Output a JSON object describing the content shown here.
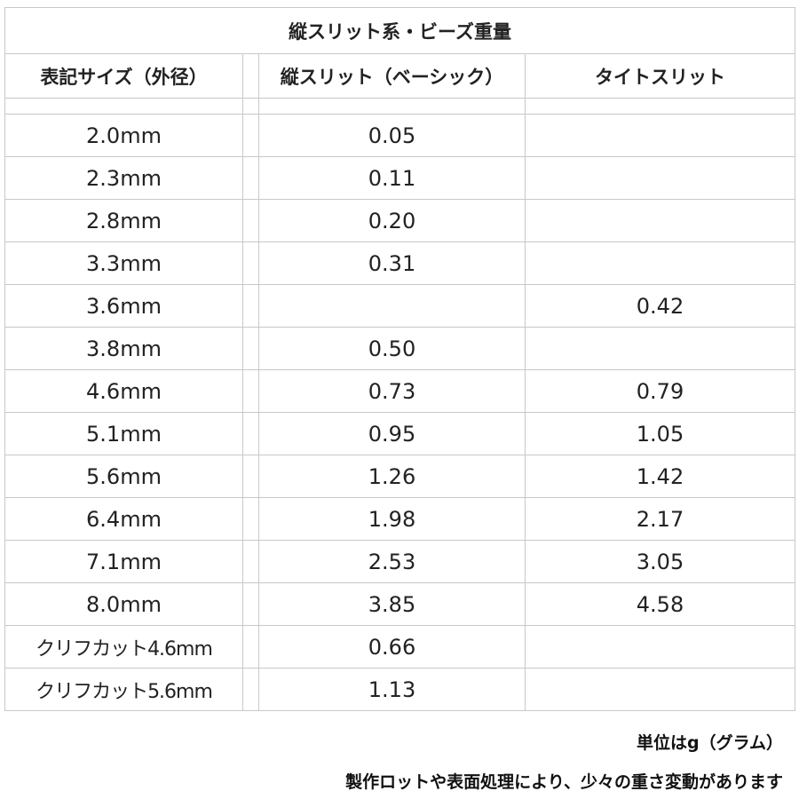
{
  "title": "縦スリット系・ビーズ重量",
  "headers": [
    "表記サイズ（外径）",
    "縦スリット（ベーシック）",
    "タイトスリット"
  ],
  "rows": [
    {
      "size": "2.0mm",
      "basic": "0.05",
      "tight": ""
    },
    {
      "size": "2.3mm",
      "basic": "0.11",
      "tight": ""
    },
    {
      "size": "2.8mm",
      "basic": "0.20",
      "tight": ""
    },
    {
      "size": "3.3mm",
      "basic": "0.31",
      "tight": ""
    },
    {
      "size": "3.6mm",
      "basic": "",
      "tight": "0.42"
    },
    {
      "size": "3.8mm",
      "basic": "0.50",
      "tight": ""
    },
    {
      "size": "4.6mm",
      "basic": "0.73",
      "tight": "0.79"
    },
    {
      "size": "5.1mm",
      "basic": "0.95",
      "tight": "1.05"
    },
    {
      "size": "5.6mm",
      "basic": "1.26",
      "tight": "1.42"
    },
    {
      "size": "6.4mm",
      "basic": "1.98",
      "tight": "2.17"
    },
    {
      "size": "7.1mm",
      "basic": "2.53",
      "tight": "3.05"
    },
    {
      "size": "8.0mm",
      "basic": "3.85",
      "tight": "4.58"
    },
    {
      "size": "クリフカット4.6mm",
      "basic": "0.66",
      "tight": ""
    },
    {
      "size": "クリフカット5.6mm",
      "basic": "1.13",
      "tight": ""
    }
  ],
  "notes": {
    "unit": "単位はg（グラム）",
    "disclaimer": "製作ロットや表面処理により、少々の重さ変動があります"
  }
}
